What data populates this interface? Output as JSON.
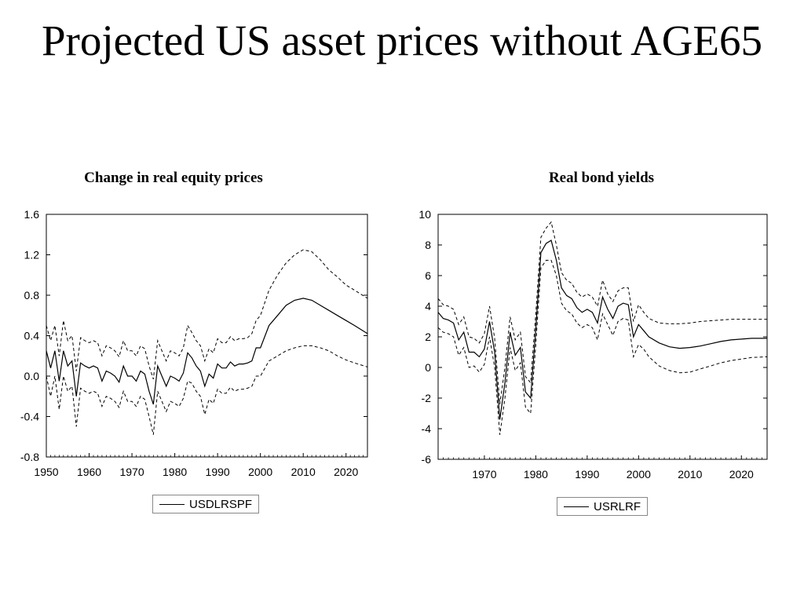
{
  "title": "Projected US asset prices without AGE65",
  "chart_data": [
    {
      "type": "line",
      "title": "Change in real equity prices",
      "xlim": [
        1950,
        2025
      ],
      "ylim": [
        -0.8,
        1.6
      ],
      "xticks": [
        1950,
        1960,
        1970,
        1980,
        1990,
        2000,
        2010,
        2020
      ],
      "yticks": [
        "1.6",
        "1.2",
        "0.8",
        "0.4",
        "0.0",
        "-0.4",
        "-0.8"
      ],
      "legend": "bottom-center",
      "series": [
        {
          "name": "USDLRSPF",
          "style": "solid",
          "x": [
            1950,
            1951,
            1952,
            1953,
            1954,
            1955,
            1956,
            1957,
            1958,
            1959,
            1960,
            1961,
            1962,
            1963,
            1964,
            1965,
            1966,
            1967,
            1968,
            1969,
            1970,
            1971,
            1972,
            1973,
            1974,
            1975,
            1976,
            1977,
            1978,
            1979,
            1980,
            1981,
            1982,
            1983,
            1984,
            1985,
            1986,
            1987,
            1988,
            1989,
            1990,
            1991,
            1992,
            1993,
            1994,
            1995,
            1996,
            1997,
            1998,
            1999,
            2000,
            2002,
            2004,
            2006,
            2008,
            2010,
            2012,
            2014,
            2016,
            2018,
            2020,
            2022,
            2025
          ],
          "y": [
            0.25,
            0.08,
            0.25,
            -0.05,
            0.25,
            0.1,
            0.15,
            -0.2,
            0.13,
            0.1,
            0.08,
            0.1,
            0.08,
            -0.05,
            0.05,
            0.03,
            0.0,
            -0.06,
            0.1,
            0.0,
            0.0,
            -0.05,
            0.05,
            0.02,
            -0.15,
            -0.28,
            0.1,
            0.0,
            -0.1,
            0.0,
            -0.02,
            -0.05,
            0.03,
            0.23,
            0.18,
            0.1,
            0.05,
            -0.1,
            0.02,
            -0.02,
            0.12,
            0.08,
            0.08,
            0.14,
            0.1,
            0.12,
            0.12,
            0.13,
            0.15,
            0.28,
            0.28,
            0.5,
            0.6,
            0.7,
            0.75,
            0.77,
            0.75,
            0.7,
            0.65,
            0.6,
            0.55,
            0.5,
            0.42
          ]
        },
        {
          "name": "",
          "style": "dashed",
          "x": [
            1950,
            1951,
            1952,
            1953,
            1954,
            1955,
            1956,
            1957,
            1958,
            1959,
            1960,
            1961,
            1962,
            1963,
            1964,
            1965,
            1966,
            1967,
            1968,
            1969,
            1970,
            1971,
            1972,
            1973,
            1974,
            1975,
            1976,
            1977,
            1978,
            1979,
            1980,
            1981,
            1982,
            1983,
            1984,
            1985,
            1986,
            1987,
            1988,
            1989,
            1990,
            1991,
            1992,
            1993,
            1994,
            1995,
            1996,
            1997,
            1998,
            1999,
            2000,
            2002,
            2004,
            2006,
            2008,
            2010,
            2012,
            2014,
            2016,
            2018,
            2020,
            2022,
            2025
          ],
          "y": [
            0.5,
            0.35,
            0.5,
            0.2,
            0.55,
            0.35,
            0.4,
            0.05,
            0.38,
            0.35,
            0.33,
            0.35,
            0.33,
            0.2,
            0.3,
            0.28,
            0.25,
            0.19,
            0.35,
            0.25,
            0.25,
            0.2,
            0.3,
            0.27,
            0.1,
            -0.03,
            0.35,
            0.25,
            0.15,
            0.25,
            0.23,
            0.2,
            0.28,
            0.5,
            0.43,
            0.35,
            0.3,
            0.15,
            0.27,
            0.23,
            0.37,
            0.33,
            0.33,
            0.39,
            0.35,
            0.37,
            0.37,
            0.38,
            0.42,
            0.55,
            0.6,
            0.85,
            1.0,
            1.12,
            1.2,
            1.25,
            1.23,
            1.15,
            1.05,
            0.98,
            0.9,
            0.85,
            0.77
          ]
        },
        {
          "name": "",
          "style": "dashed",
          "x": [
            1950,
            1951,
            1952,
            1953,
            1954,
            1955,
            1956,
            1957,
            1958,
            1959,
            1960,
            1961,
            1962,
            1963,
            1964,
            1965,
            1966,
            1967,
            1968,
            1969,
            1970,
            1971,
            1972,
            1973,
            1974,
            1975,
            1976,
            1977,
            1978,
            1979,
            1980,
            1981,
            1982,
            1983,
            1984,
            1985,
            1986,
            1987,
            1988,
            1989,
            1990,
            1991,
            1992,
            1993,
            1994,
            1995,
            1996,
            1997,
            1998,
            1999,
            2000,
            2002,
            2004,
            2006,
            2008,
            2010,
            2012,
            2014,
            2016,
            2018,
            2020,
            2022,
            2025
          ],
          "y": [
            0.0,
            -0.2,
            0.0,
            -0.33,
            0.0,
            -0.15,
            -0.1,
            -0.5,
            -0.12,
            -0.15,
            -0.17,
            -0.15,
            -0.17,
            -0.3,
            -0.2,
            -0.22,
            -0.25,
            -0.31,
            -0.15,
            -0.25,
            -0.25,
            -0.3,
            -0.2,
            -0.23,
            -0.4,
            -0.58,
            -0.15,
            -0.25,
            -0.35,
            -0.25,
            -0.27,
            -0.3,
            -0.22,
            -0.05,
            -0.07,
            -0.15,
            -0.2,
            -0.38,
            -0.23,
            -0.27,
            -0.13,
            -0.17,
            -0.17,
            -0.11,
            -0.15,
            -0.13,
            -0.13,
            -0.12,
            -0.1,
            0.0,
            0.0,
            0.15,
            0.2,
            0.25,
            0.28,
            0.3,
            0.3,
            0.28,
            0.25,
            0.2,
            0.16,
            0.13,
            0.09
          ]
        }
      ]
    },
    {
      "type": "line",
      "title": "Real bond yields",
      "xlim": [
        1961,
        2025
      ],
      "ylim": [
        -6,
        10
      ],
      "xticks": [
        1970,
        1980,
        1990,
        2000,
        2010,
        2020
      ],
      "yticks": [
        "10",
        "8",
        "6",
        "4",
        "2",
        "0",
        "-2",
        "-4",
        "-6"
      ],
      "legend": "bottom-center",
      "series": [
        {
          "name": "USRLRF",
          "style": "solid",
          "x": [
            1961,
            1962,
            1963,
            1964,
            1965,
            1966,
            1967,
            1968,
            1969,
            1970,
            1971,
            1972,
            1973,
            1974,
            1975,
            1976,
            1977,
            1978,
            1979,
            1980,
            1981,
            1982,
            1983,
            1984,
            1985,
            1986,
            1987,
            1988,
            1989,
            1990,
            1991,
            1992,
            1993,
            1994,
            1995,
            1996,
            1997,
            1998,
            1999,
            2000,
            2001,
            2002,
            2004,
            2006,
            2008,
            2010,
            2012,
            2014,
            2016,
            2018,
            2020,
            2022,
            2025
          ],
          "y": [
            3.6,
            3.2,
            3.1,
            2.9,
            1.8,
            2.3,
            1.0,
            1.0,
            0.7,
            1.2,
            3.0,
            1.0,
            -3.4,
            -1.0,
            2.3,
            0.8,
            1.3,
            -1.6,
            -2.0,
            2.5,
            7.5,
            8.1,
            8.3,
            7.0,
            5.2,
            4.7,
            4.5,
            3.9,
            3.6,
            3.8,
            3.6,
            2.9,
            4.6,
            3.8,
            3.2,
            4.0,
            4.2,
            4.1,
            2.0,
            2.8,
            2.4,
            2.0,
            1.6,
            1.35,
            1.25,
            1.3,
            1.4,
            1.55,
            1.7,
            1.8,
            1.85,
            1.9,
            1.9
          ]
        },
        {
          "name": "",
          "style": "dashed",
          "x": [
            1961,
            1962,
            1963,
            1964,
            1965,
            1966,
            1967,
            1968,
            1969,
            1970,
            1971,
            1972,
            1973,
            1974,
            1975,
            1976,
            1977,
            1978,
            1979,
            1980,
            1981,
            1982,
            1983,
            1984,
            1985,
            1986,
            1987,
            1988,
            1989,
            1990,
            1991,
            1992,
            1993,
            1994,
            1995,
            1996,
            1997,
            1998,
            1999,
            2000,
            2001,
            2002,
            2004,
            2006,
            2008,
            2010,
            2012,
            2014,
            2016,
            2018,
            2020,
            2022,
            2025
          ],
          "y": [
            4.5,
            4.1,
            4.0,
            3.8,
            2.8,
            3.3,
            2.0,
            1.9,
            1.6,
            2.2,
            4.0,
            1.9,
            -2.4,
            0.0,
            3.3,
            1.8,
            2.3,
            -0.6,
            -1.0,
            3.5,
            8.5,
            9.1,
            9.5,
            8.0,
            6.2,
            5.7,
            5.5,
            4.9,
            4.6,
            4.8,
            4.6,
            4.0,
            5.7,
            4.8,
            4.3,
            5.0,
            5.2,
            5.2,
            3.0,
            4.1,
            3.6,
            3.2,
            2.9,
            2.85,
            2.85,
            2.9,
            3.0,
            3.05,
            3.1,
            3.15,
            3.15,
            3.15,
            3.15
          ]
        },
        {
          "name": "",
          "style": "dashed",
          "x": [
            1961,
            1962,
            1963,
            1964,
            1965,
            1966,
            1967,
            1968,
            1969,
            1970,
            1971,
            1972,
            1973,
            1974,
            1975,
            1976,
            1977,
            1978,
            1979,
            1980,
            1981,
            1982,
            1983,
            1984,
            1985,
            1986,
            1987,
            1988,
            1989,
            1990,
            1991,
            1992,
            1993,
            1994,
            1995,
            1996,
            1997,
            1998,
            1999,
            2000,
            2001,
            2002,
            2004,
            2006,
            2008,
            2010,
            2012,
            2014,
            2016,
            2018,
            2020,
            2022,
            2025
          ],
          "y": [
            2.6,
            2.3,
            2.2,
            2.0,
            0.8,
            1.3,
            0.0,
            0.1,
            -0.3,
            0.2,
            2.0,
            0.0,
            -4.4,
            -2.0,
            1.3,
            -0.2,
            0.3,
            -2.6,
            -3.0,
            1.5,
            6.5,
            7.0,
            7.0,
            6.0,
            4.2,
            3.7,
            3.5,
            2.9,
            2.6,
            2.8,
            2.6,
            1.8,
            3.5,
            2.8,
            2.1,
            3.0,
            3.2,
            3.1,
            0.7,
            1.5,
            1.2,
            0.7,
            0.1,
            -0.2,
            -0.35,
            -0.3,
            -0.1,
            0.1,
            0.3,
            0.45,
            0.55,
            0.65,
            0.7
          ]
        }
      ]
    }
  ]
}
